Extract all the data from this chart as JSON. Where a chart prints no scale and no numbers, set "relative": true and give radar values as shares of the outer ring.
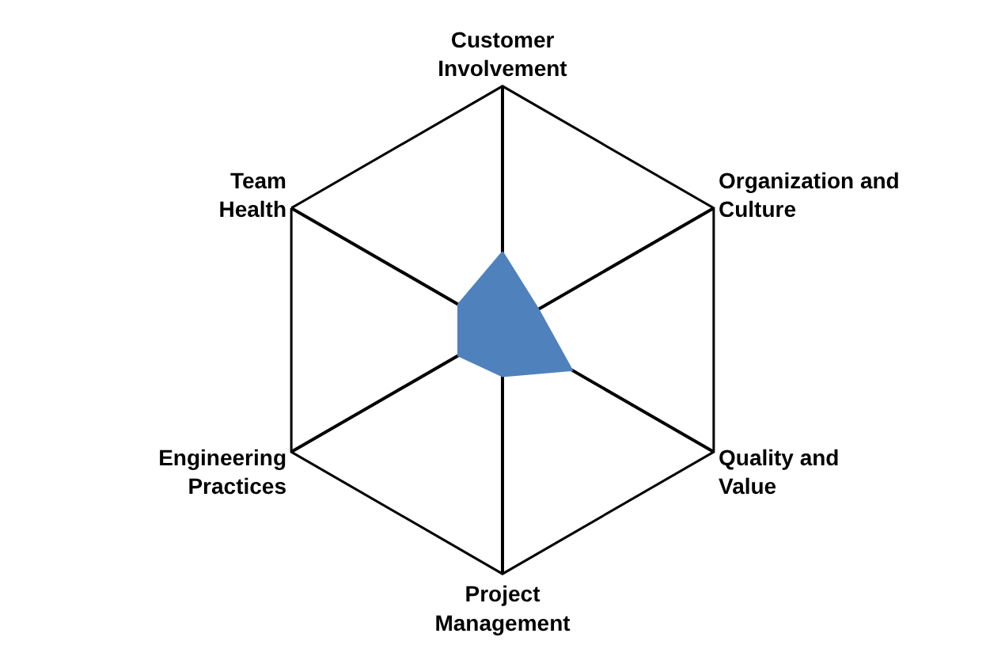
{
  "chart_data": {
    "type": "radar",
    "relative": true,
    "categories": [
      "Customer Involvement",
      "Organization and Culture",
      "Quality and Value",
      "Project Management",
      "Engineering Practices",
      "Team Health"
    ],
    "series": [
      {
        "color": "#4f81bd",
        "values": [
          0.32,
          0.17,
          0.33,
          0.19,
          0.21,
          0.21
        ]
      }
    ]
  }
}
